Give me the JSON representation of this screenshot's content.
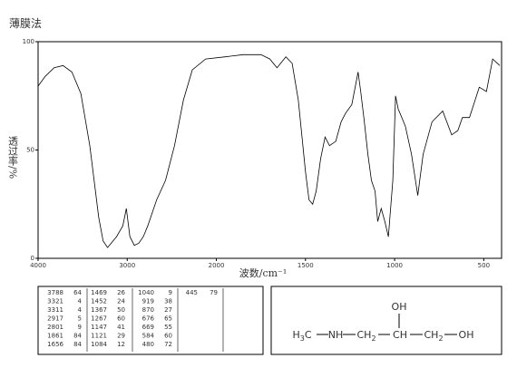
{
  "chart_data": {
    "type": "line",
    "title": "薄膜法",
    "x_label": "波数/cm⁻¹",
    "y_label": "透过率/%",
    "x": [
      4000,
      3920,
      3820,
      3720,
      3620,
      3520,
      3420,
      3320,
      3270,
      3220,
      3120,
      3050,
      3010,
      2970,
      2920,
      2870,
      2820,
      2770,
      2670,
      2570,
      2470,
      2370,
      2270,
      2120,
      1950,
      1850,
      1750,
      1700,
      1660,
      1610,
      1575,
      1540,
      1500,
      1480,
      1460,
      1440,
      1415,
      1390,
      1365,
      1330,
      1300,
      1275,
      1240,
      1205,
      1190,
      1170,
      1150,
      1130,
      1110,
      1095,
      1075,
      1055,
      1035,
      1010,
      995,
      980,
      940,
      905,
      870,
      840,
      790,
      730,
      680,
      645,
      620,
      580,
      525,
      485,
      450,
      410
    ],
    "values": [
      79.5,
      84,
      88,
      89,
      86,
      76,
      52,
      19,
      8,
      5,
      10,
      15,
      23,
      10,
      6,
      7,
      10,
      15,
      27,
      36,
      52,
      73,
      87,
      92,
      93,
      94,
      94,
      92,
      88,
      93,
      90,
      73,
      40,
      27,
      25,
      31,
      46,
      56,
      52,
      54,
      63,
      67,
      71,
      86,
      77,
      63,
      48,
      36,
      31,
      17,
      23,
      17,
      10,
      36,
      75,
      69,
      61,
      48,
      29,
      48,
      63,
      68,
      57,
      59,
      65,
      65,
      79,
      77,
      92,
      89
    ],
    "color": "#000000",
    "xlim": [
      4000,
      400
    ],
    "xticks": [
      4000,
      3000,
      2000,
      1500,
      1000,
      500
    ],
    "x_scale": {
      "break": 2000,
      "factor": 2
    },
    "ylim": [
      0,
      100
    ],
    "yticks": [
      0,
      50,
      100
    ]
  },
  "peak_table": [
    [
      3788,
      64
    ],
    [
      3321,
      4
    ],
    [
      3311,
      4
    ],
    [
      2917,
      5
    ],
    [
      2801,
      9
    ],
    [
      1861,
      84
    ],
    [
      1656,
      84
    ],
    [
      1469,
      26
    ],
    [
      1452,
      24
    ],
    [
      1367,
      50
    ],
    [
      1267,
      60
    ],
    [
      1147,
      41
    ],
    [
      1121,
      29
    ],
    [
      1084,
      12
    ],
    [
      1040,
      9
    ],
    [
      919,
      38
    ],
    [
      870,
      27
    ],
    [
      676,
      65
    ],
    [
      669,
      55
    ],
    [
      584,
      60
    ],
    [
      480,
      72
    ],
    [
      445,
      79
    ]
  ],
  "structure": {
    "groups": [
      "H3C",
      "NH",
      "CH2",
      "CH",
      "CH2",
      "OH"
    ],
    "substituent": "OH"
  }
}
